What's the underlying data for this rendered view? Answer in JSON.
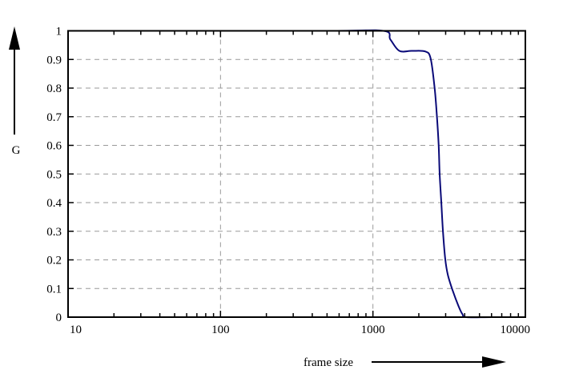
{
  "chart_data": {
    "type": "line",
    "title": "",
    "xlabel": "frame size",
    "ylabel": "G",
    "xscale": "log",
    "xlim": [
      10,
      10000
    ],
    "ylim": [
      0,
      1
    ],
    "grid": true,
    "x_ticks": [
      10,
      100,
      1000,
      10000
    ],
    "x_tick_labels": [
      "10",
      "100",
      "1000",
      "10000"
    ],
    "y_ticks": [
      0,
      0.1,
      0.2,
      0.3,
      0.4,
      0.5,
      0.6,
      0.7,
      0.8,
      0.9,
      1
    ],
    "y_tick_labels": [
      "0",
      "0.1",
      "0.2",
      "0.3",
      "0.4",
      "0.5",
      "0.6",
      "0.7",
      "0.8",
      "0.9",
      "1"
    ],
    "series": [
      {
        "color": "#0a0a78",
        "x": [
          20,
          500,
          1170,
          1300,
          1490,
          1800,
          2200,
          2390,
          2540,
          2630,
          2700,
          2740,
          2810,
          2880,
          2980,
          3100,
          3340,
          3660,
          3870,
          4100,
          6000,
          10000
        ],
        "y": [
          1,
          1,
          1,
          0.97,
          0.93,
          0.93,
          0.928,
          0.904,
          0.8,
          0.7,
          0.6,
          0.5,
          0.4,
          0.3,
          0.204,
          0.148,
          0.092,
          0.036,
          0.01,
          0,
          0,
          0
        ]
      }
    ]
  }
}
